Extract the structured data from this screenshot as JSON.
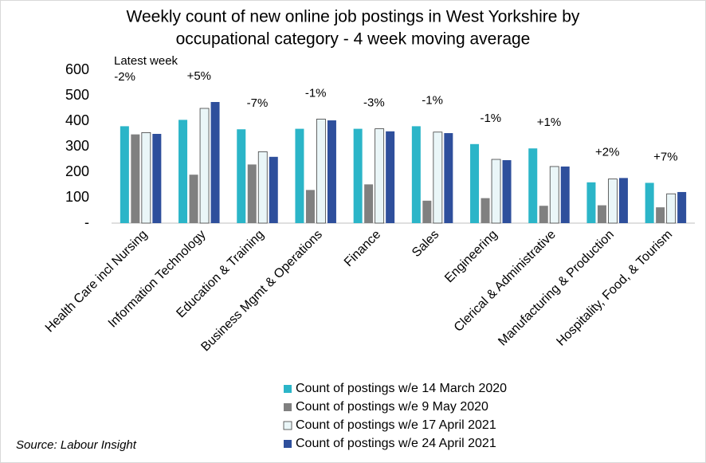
{
  "chart_data": {
    "type": "bar",
    "title": [
      "Weekly count of new online job postings in West Yorkshire by",
      "occupational category - 4 week moving average"
    ],
    "categories": [
      "Health Care incl Nursing",
      "Information Technology",
      "Education & Training",
      "Business Mgmt & Operations",
      "Finance",
      "Sales",
      "Engineering",
      "Clerical & Administrative",
      "Manufacturing & Production",
      "Hospitality, Food, & Tourism"
    ],
    "series": [
      {
        "name": "Count of postings w/e 14 March 2020",
        "color": "#2bb5c8",
        "values": [
          380,
          405,
          368,
          370,
          370,
          380,
          310,
          293,
          160,
          158
        ]
      },
      {
        "name": "Count of postings w/e 9 May 2020",
        "color": "#808080",
        "values": [
          348,
          190,
          230,
          130,
          152,
          88,
          98,
          68,
          70,
          62
        ]
      },
      {
        "name": "Count of postings w/e 17 April 2021",
        "color": "#eaf6f8",
        "values": [
          355,
          450,
          280,
          408,
          370,
          357,
          250,
          222,
          173,
          115
        ]
      },
      {
        "name": "Count of postings w/e 24 April 2021",
        "color": "#2e4f9c",
        "values": [
          350,
          475,
          260,
          403,
          360,
          353,
          247,
          222,
          177,
          122
        ]
      }
    ],
    "annotation_title": "Latest week",
    "annotations": [
      "-2%",
      "+5%",
      "-7%",
      "-1%",
      "-3%",
      "-1%",
      "-1%",
      "+1%",
      "+2%",
      "+7%"
    ],
    "ylim": [
      0,
      600
    ],
    "yticks": [
      {
        "value": 0,
        "label": "-"
      },
      100,
      200,
      300,
      400,
      500,
      600
    ],
    "source": "Source: Labour Insight"
  }
}
